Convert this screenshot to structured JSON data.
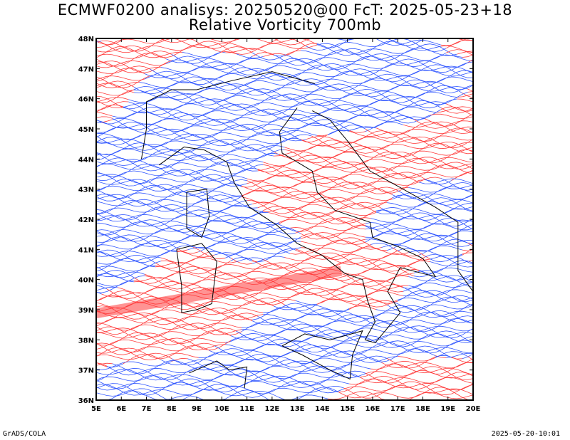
{
  "title": {
    "line1": "ECMWF0200 analisys: 20250520@00 FcT: 2025-05-23+18",
    "line2": "Relative Vorticity 700mb"
  },
  "map": {
    "lon_range": [
      5,
      20
    ],
    "lat_range": [
      36,
      48
    ],
    "lon_ticks": [
      "5E",
      "6E",
      "7E",
      "8E",
      "9E",
      "10E",
      "11E",
      "12E",
      "13E",
      "14E",
      "15E",
      "16E",
      "17E",
      "18E",
      "19E",
      "20E"
    ],
    "lat_ticks": [
      "36N",
      "37N",
      "38N",
      "39N",
      "40N",
      "41N",
      "42N",
      "43N",
      "44N",
      "45N",
      "46N",
      "47N",
      "48N"
    ],
    "colors": {
      "positive": "#ff3b3b",
      "negative": "#2f55ff",
      "coast": "#000000"
    }
  },
  "footer": {
    "credit": "GrADS/COLA",
    "timestamp": "2025-05-20-10:01"
  }
}
